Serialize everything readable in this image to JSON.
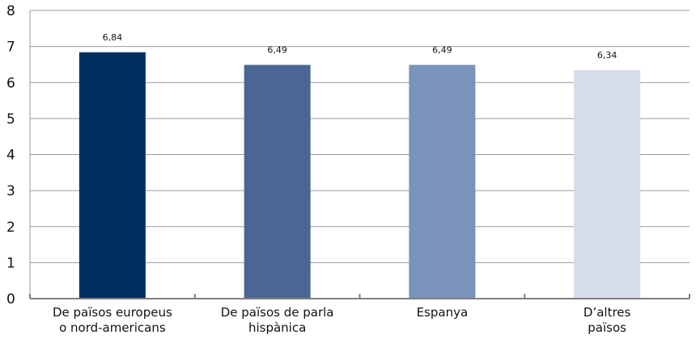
{
  "chart_data": {
    "type": "bar",
    "categories": [
      [
        "De països europeus",
        "o nord-americans"
      ],
      [
        "De països de parla",
        "hispànica"
      ],
      [
        "Espanya"
      ],
      [
        "D’altres",
        "països"
      ]
    ],
    "values": [
      6.84,
      6.49,
      6.49,
      6.34
    ],
    "value_labels": [
      "6,84",
      "6,49",
      "6,49",
      "6,34"
    ],
    "colors": [
      "#002f5f",
      "#4a6793",
      "#7a93ba",
      "#d7dcea"
    ],
    "yticks": [
      "0",
      "1",
      "2",
      "3",
      "4",
      "5",
      "6",
      "7",
      "8"
    ],
    "ylim": [
      0,
      8
    ],
    "grid": true,
    "legend": "none"
  }
}
